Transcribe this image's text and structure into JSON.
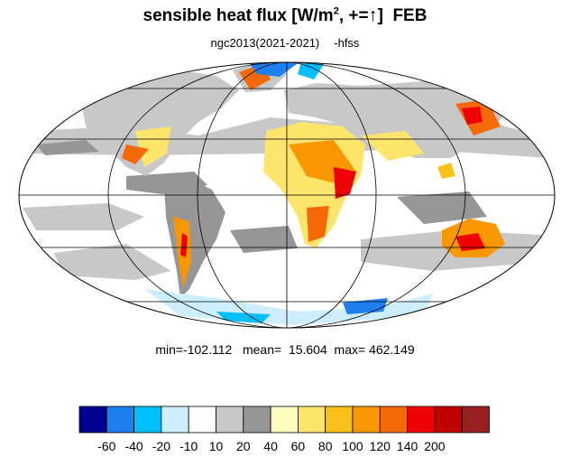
{
  "title": {
    "main": "sensible heat flux [W/m",
    "superscript": "2",
    "sign": ", +=",
    "arrow": "↑",
    "close": "]",
    "month": "FEB"
  },
  "subtitle": {
    "run": "ngc2013(2021-2021)",
    "variable": "-hfss"
  },
  "stats": {
    "min_label": "min=",
    "min": "-102.112",
    "mean_label": "mean=",
    "mean": "15.604",
    "max_label": "max=",
    "max": "462.149"
  },
  "chart_data": {
    "type": "heatmap",
    "projection": "mollweide",
    "title": "sensible heat flux [W/m2, +=↑]  FEB",
    "subtitle": "ngc2013(2021-2021)   -hfss",
    "stats": {
      "min": -102.112,
      "mean": 15.604,
      "max": 462.149
    },
    "colorbar": {
      "colors": [
        "#00008f",
        "#1f7ff0",
        "#00bfff",
        "#cdeffd",
        "#ffffff",
        "#c8c8c8",
        "#969696",
        "#fffcc0",
        "#fde46b",
        "#fbc11b",
        "#f99700",
        "#f46a09",
        "#ee0005",
        "#c00000",
        "#982020"
      ],
      "tick_labels": [
        "-60",
        "-40",
        "-20",
        "-10",
        "10",
        "20",
        "40",
        "60",
        "80",
        "100",
        "120",
        "140",
        "200"
      ]
    },
    "grid": true
  }
}
